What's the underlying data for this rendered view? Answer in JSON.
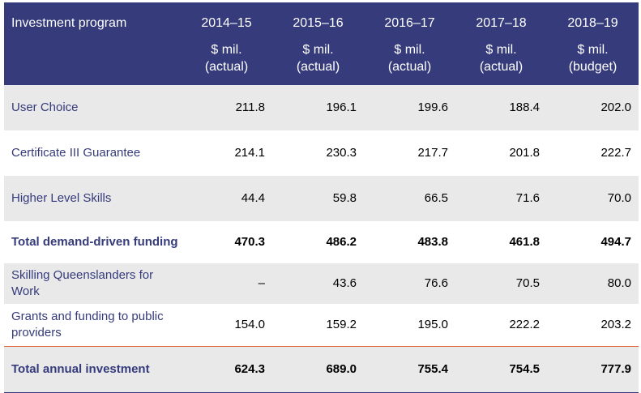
{
  "header": {
    "program": "Investment program",
    "years": [
      "2014–15",
      "2015–16",
      "2016–17",
      "2017–18",
      "2018–19"
    ],
    "unit": "$ mil.",
    "kinds": [
      "(actual)",
      "(actual)",
      "(actual)",
      "(actual)",
      "(budget)"
    ]
  },
  "rows": [
    {
      "label": "User Choice",
      "values": [
        "211.8",
        "196.1",
        "199.6",
        "188.4",
        "202.0"
      ]
    },
    {
      "label": "Certificate III Guarantee",
      "values": [
        "214.1",
        "230.3",
        "217.7",
        "201.8",
        "222.7"
      ]
    },
    {
      "label": "Higher Level Skills",
      "values": [
        "44.4",
        "59.8",
        "66.5",
        "71.6",
        "70.0"
      ]
    },
    {
      "label": "Total demand-driven funding",
      "values": [
        "470.3",
        "486.2",
        "483.8",
        "461.8",
        "494.7"
      ]
    },
    {
      "label": "Skilling Queenslanders for Work",
      "values": [
        "–",
        "43.6",
        "76.6",
        "70.5",
        "80.0"
      ]
    },
    {
      "label": "Grants and funding to public providers",
      "values": [
        "154.0",
        "159.2",
        "195.0",
        "222.2",
        "203.2"
      ]
    },
    {
      "label": "Total annual investment",
      "values": [
        "624.3",
        "689.0",
        "755.4",
        "754.5",
        "777.9"
      ]
    }
  ]
}
